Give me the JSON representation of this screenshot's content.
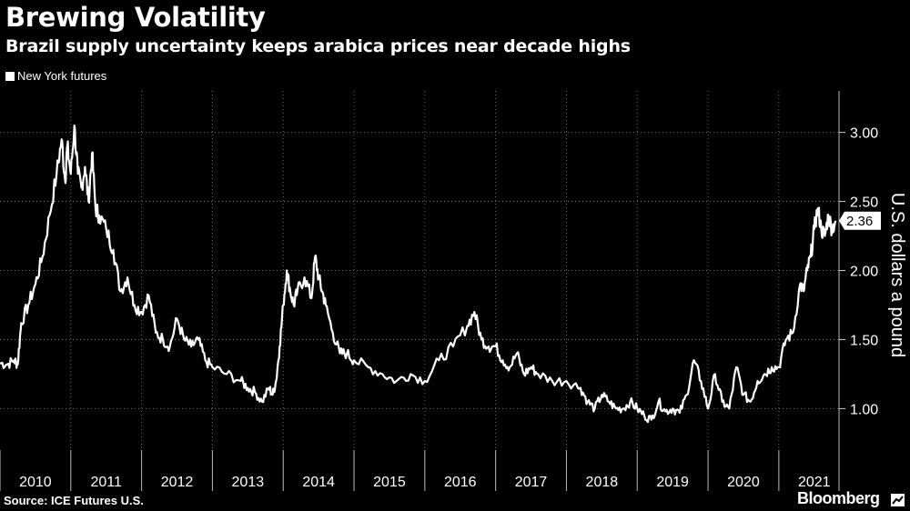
{
  "header": {
    "title": "Brewing Volatility",
    "subtitle": "Brazil supply uncertainty keeps arabica prices near decade highs"
  },
  "footer": {
    "source": "Source: ICE Futures U.S.",
    "brand": "Bloomberg"
  },
  "colors": {
    "background": "#000000",
    "line": "#ffffff",
    "grid": "#6a6a6a"
  },
  "chart_data": {
    "type": "line",
    "title": "Brewing Volatility",
    "subtitle": "Brazil supply uncertainty keeps arabica prices near decade highs",
    "xlabel": "",
    "ylabel": "U.S. dollars a pound",
    "legend": [
      "New York futures"
    ],
    "legend_position": "top-left",
    "grid": true,
    "xlim": [
      2010.0,
      2021.85
    ],
    "ylim": [
      0.7,
      3.3
    ],
    "yticks": [
      1.0,
      1.5,
      2.0,
      2.5,
      3.0
    ],
    "ytick_labels": [
      "1.00",
      "1.50",
      "2.00",
      "2.50",
      "3.00"
    ],
    "xtick_labels": [
      "2010",
      "2011",
      "2012",
      "2013",
      "2014",
      "2015",
      "2016",
      "2017",
      "2018",
      "2019",
      "2020",
      "2021"
    ],
    "last_value_label": "2.36",
    "series": [
      {
        "name": "New York futures",
        "x": [
          2010.0,
          2010.1,
          2010.2,
          2010.25,
          2010.3,
          2010.4,
          2010.5,
          2010.6,
          2010.7,
          2010.8,
          2010.87,
          2010.92,
          2010.95,
          2011.0,
          2011.05,
          2011.1,
          2011.15,
          2011.2,
          2011.25,
          2011.3,
          2011.35,
          2011.4,
          2011.5,
          2011.6,
          2011.7,
          2011.8,
          2011.9,
          2012.0,
          2012.1,
          2012.2,
          2012.3,
          2012.4,
          2012.5,
          2012.6,
          2012.7,
          2012.8,
          2012.9,
          2013.0,
          2013.2,
          2013.4,
          2013.5,
          2013.6,
          2013.7,
          2013.8,
          2013.85,
          2013.9,
          2013.95,
          2014.0,
          2014.05,
          2014.1,
          2014.15,
          2014.2,
          2014.3,
          2014.4,
          2014.45,
          2014.5,
          2014.55,
          2014.6,
          2014.7,
          2014.8,
          2014.9,
          2015.0,
          2015.2,
          2015.4,
          2015.6,
          2015.8,
          2016.0,
          2016.2,
          2016.4,
          2016.6,
          2016.7,
          2016.8,
          2016.9,
          2017.0,
          2017.1,
          2017.2,
          2017.3,
          2017.4,
          2017.5,
          2017.6,
          2017.8,
          2018.0,
          2018.2,
          2018.3,
          2018.4,
          2018.5,
          2018.6,
          2018.7,
          2018.8,
          2018.9,
          2019.0,
          2019.1,
          2019.2,
          2019.3,
          2019.4,
          2019.5,
          2019.6,
          2019.7,
          2019.8,
          2019.9,
          2020.0,
          2020.1,
          2020.2,
          2020.3,
          2020.4,
          2020.5,
          2020.6,
          2020.7,
          2020.8,
          2020.9,
          2021.0,
          2021.1,
          2021.2,
          2021.3,
          2021.35,
          2021.4,
          2021.45,
          2021.5,
          2021.55,
          2021.6,
          2021.65,
          2021.7,
          2021.75,
          2021.8
        ],
        "values": [
          1.33,
          1.32,
          1.35,
          1.32,
          1.62,
          1.75,
          1.9,
          2.1,
          2.4,
          2.7,
          2.95,
          2.65,
          2.9,
          2.7,
          3.05,
          2.7,
          2.6,
          2.75,
          2.5,
          2.85,
          2.45,
          2.4,
          2.3,
          2.15,
          1.85,
          1.95,
          1.75,
          1.7,
          1.82,
          1.55,
          1.5,
          1.45,
          1.65,
          1.5,
          1.45,
          1.5,
          1.35,
          1.3,
          1.25,
          1.2,
          1.15,
          1.12,
          1.05,
          1.15,
          1.1,
          1.2,
          1.45,
          1.75,
          2.0,
          1.85,
          1.75,
          1.85,
          1.95,
          1.8,
          2.1,
          1.95,
          1.85,
          1.75,
          1.55,
          1.4,
          1.4,
          1.35,
          1.3,
          1.25,
          1.2,
          1.25,
          1.2,
          1.35,
          1.45,
          1.6,
          1.7,
          1.5,
          1.45,
          1.45,
          1.35,
          1.3,
          1.4,
          1.25,
          1.3,
          1.25,
          1.2,
          1.2,
          1.15,
          1.05,
          1.0,
          1.1,
          1.05,
          1.0,
          1.0,
          1.05,
          1.0,
          0.95,
          0.92,
          1.05,
          0.98,
          1.0,
          0.97,
          1.1,
          1.35,
          1.2,
          1.0,
          1.25,
          1.05,
          1.0,
          1.3,
          1.1,
          1.05,
          1.2,
          1.25,
          1.3,
          1.3,
          1.5,
          1.55,
          1.9,
          1.85,
          2.0,
          2.1,
          2.3,
          2.45,
          2.3,
          2.25,
          2.4,
          2.3,
          2.36
        ]
      }
    ]
  }
}
